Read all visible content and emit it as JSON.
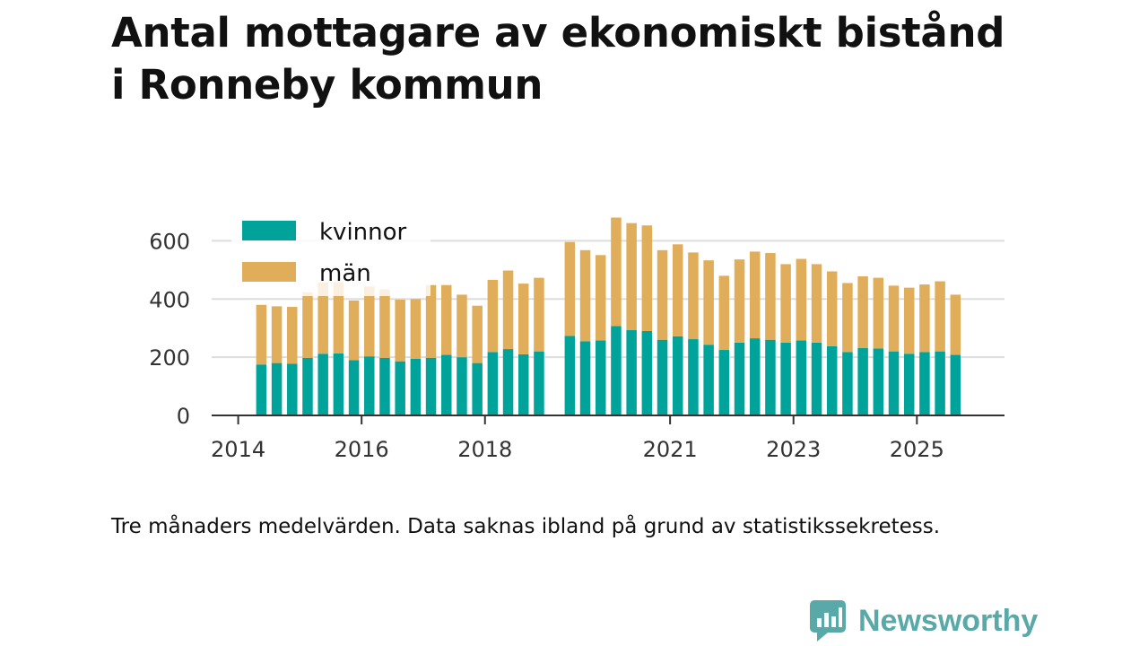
{
  "chart_data": {
    "type": "bar",
    "stacked": true,
    "title": "Antal mottagare av ekonomiskt bistånd i Ronneby kommun",
    "title_lines": [
      "Antal mottagare av ekonomiskt bistånd",
      "i Ronneby kommun"
    ],
    "xlabel": "",
    "ylabel": "",
    "ylim": [
      0,
      700
    ],
    "yticks": [
      0,
      200,
      400,
      600
    ],
    "xticks": [
      2014,
      2016,
      2018,
      2021,
      2023,
      2025
    ],
    "x_range": [
      2013.57,
      2026.42
    ],
    "grid": true,
    "legend_position": "top-left",
    "x": [
      2014.375,
      2014.625,
      2014.875,
      2015.125,
      2015.375,
      2015.625,
      2015.875,
      2016.125,
      2016.375,
      2016.625,
      2016.875,
      2017.125,
      2017.375,
      2017.625,
      2017.875,
      2018.125,
      2018.375,
      2018.625,
      2018.875,
      2019.375,
      2019.625,
      2019.875,
      2020.125,
      2020.375,
      2020.625,
      2020.875,
      2021.125,
      2021.375,
      2021.625,
      2021.875,
      2022.125,
      2022.375,
      2022.625,
      2022.875,
      2023.125,
      2023.375,
      2023.625,
      2023.875,
      2024.125,
      2024.375,
      2024.625,
      2024.875,
      2025.125,
      2025.375,
      2025.625
    ],
    "series": [
      {
        "name": "kvinnor",
        "color": "#00a39a",
        "values": [
          175,
          180,
          178,
          198,
          212,
          213,
          190,
          203,
          198,
          186,
          195,
          198,
          208,
          200,
          180,
          218,
          228,
          210,
          220,
          273,
          255,
          258,
          307,
          293,
          290,
          260,
          272,
          262,
          243,
          225,
          250,
          265,
          260,
          250,
          258,
          250,
          238,
          218,
          232,
          230,
          220,
          212,
          218,
          220,
          208
        ]
      },
      {
        "name": "män",
        "color": "#e0ad5a",
        "values": [
          205,
          195,
          195,
          225,
          245,
          245,
          205,
          240,
          235,
          212,
          205,
          250,
          240,
          215,
          197,
          248,
          270,
          243,
          253,
          323,
          313,
          293,
          373,
          368,
          363,
          308,
          316,
          298,
          290,
          255,
          286,
          298,
          298,
          270,
          280,
          270,
          257,
          237,
          246,
          243,
          226,
          227,
          232,
          241,
          207
        ]
      }
    ]
  },
  "note": "Tre månaders medelvärden. Data saknas ibland på grund av statistikssekretess.",
  "brand": {
    "name": "Newsworthy",
    "color": "#5aa9a9"
  }
}
